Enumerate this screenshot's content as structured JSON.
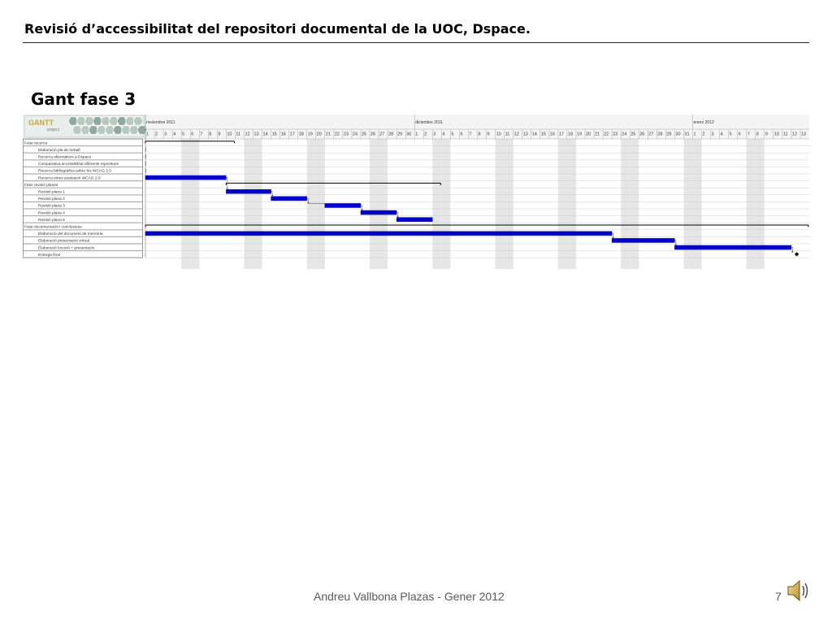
{
  "slide": {
    "header": "Revisió d’accessibilitat del repositori documental de la UOC, Dspace.",
    "title": "Gant fase 3",
    "footer": "Andreu Vallbona Plazas - Gener 2012",
    "page_number": "7"
  },
  "gantt": {
    "logo_text": "GANTT",
    "logo_subtext": "project",
    "months": [
      {
        "label": "noviembre 2011",
        "start_index": 0
      },
      {
        "label": "diciembre 2011",
        "start_index": 30
      },
      {
        "label": "enero 2012",
        "start_index": 61
      }
    ],
    "days": [
      1,
      2,
      3,
      4,
      5,
      6,
      7,
      8,
      9,
      10,
      11,
      12,
      13,
      14,
      15,
      16,
      17,
      18,
      19,
      20,
      21,
      22,
      23,
      24,
      25,
      26,
      27,
      28,
      29,
      30,
      1,
      2,
      3,
      4,
      5,
      6,
      7,
      8,
      9,
      10,
      11,
      12,
      13,
      14,
      15,
      16,
      17,
      18,
      19,
      20,
      21,
      22,
      23,
      24,
      25,
      26,
      27,
      28,
      29,
      30,
      31,
      1,
      2,
      3,
      4,
      5,
      6,
      7,
      8,
      9,
      10,
      11,
      12,
      13
    ],
    "weekend_shaded_indices": [
      4,
      5,
      11,
      12,
      18,
      19,
      25,
      26,
      32,
      33,
      39,
      40,
      46,
      47,
      53,
      54,
      60,
      61,
      67,
      68
    ],
    "tasks": [
      {
        "name": "Fase recerca",
        "level": 0,
        "type": "summary",
        "start": 0,
        "end": 9
      },
      {
        "name": "Elaboració pla de treball",
        "level": 1,
        "type": "task",
        "start": 0,
        "end": 0
      },
      {
        "name": "Recerca alternatives a Dspace",
        "level": 1,
        "type": "task",
        "start": 0,
        "end": 0
      },
      {
        "name": "Comparativa accessibilitat diferents repositoris",
        "level": 1,
        "type": "task",
        "start": 0,
        "end": 0
      },
      {
        "name": "Recerca bibliogràfica sobre les WCAG 2.0",
        "level": 1,
        "type": "task",
        "start": 0,
        "end": 0
      },
      {
        "name": "Recerca eines avaluació WCAG 2.0",
        "level": 1,
        "type": "task",
        "start": 0,
        "end": 9
      },
      {
        "name": "Fase revisió planes",
        "level": 0,
        "type": "summary",
        "start": 9,
        "end": 32
      },
      {
        "name": "Revisió plana 1",
        "level": 1,
        "type": "task",
        "start": 9,
        "end": 14
      },
      {
        "name": "Revisió plana 2",
        "level": 1,
        "type": "task",
        "start": 14,
        "end": 18
      },
      {
        "name": "Revisió plana 3",
        "level": 1,
        "type": "task",
        "start": 20,
        "end": 24
      },
      {
        "name": "Revisió plana 4",
        "level": 1,
        "type": "task",
        "start": 24,
        "end": 28
      },
      {
        "name": "Revisió plana 5",
        "level": 1,
        "type": "task",
        "start": 28,
        "end": 32
      },
      {
        "name": "Fase documentació i conclusions",
        "level": 0,
        "type": "summary",
        "start": 0,
        "end": 73
      },
      {
        "name": "Elaboració del document de memòria",
        "level": 1,
        "type": "task",
        "start": 0,
        "end": 52
      },
      {
        "name": "Elaboració presentació virtual",
        "level": 1,
        "type": "task",
        "start": 52,
        "end": 59
      },
      {
        "name": "Elaboració locució + presentació",
        "level": 1,
        "type": "task",
        "start": 59,
        "end": 72
      },
      {
        "name": "Entrega final",
        "level": 1,
        "type": "milestone",
        "start": 72,
        "end": 72
      }
    ],
    "colors": {
      "bar": "#0000cc",
      "weekend": "#e6e6e6",
      "grid": "#cfcfcf",
      "summary": "#000000"
    }
  }
}
